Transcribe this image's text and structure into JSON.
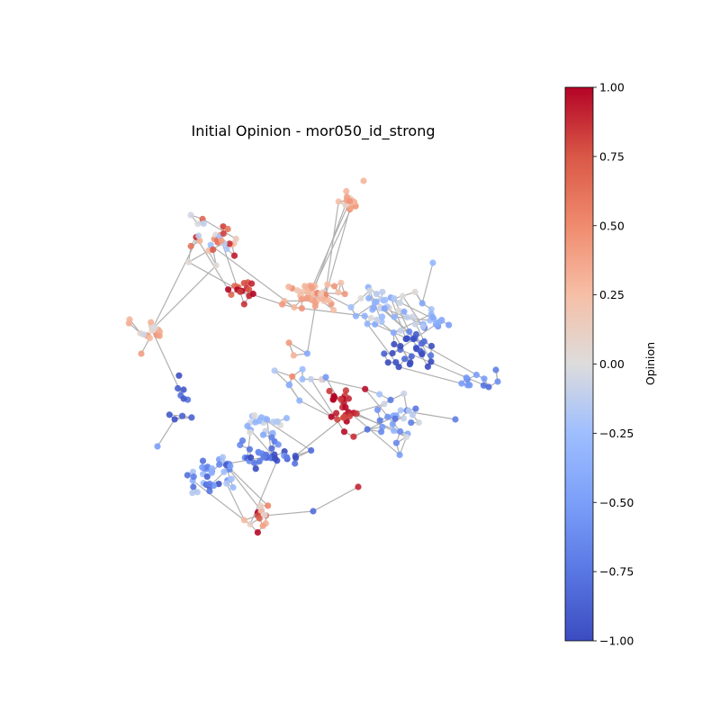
{
  "chart_data": {
    "type": "network",
    "title": "Initial Opinion - mor050_id_strong",
    "colorbar": {
      "label": "Opinion",
      "colormap": "coolwarm",
      "range": [
        -1.0,
        1.0
      ],
      "ticks": [
        "1.00",
        "0.75",
        "0.50",
        "0.25",
        "0.00",
        "−0.25",
        "−0.50",
        "−0.75",
        "−1.00"
      ],
      "tick_values": [
        1.0,
        0.75,
        0.5,
        0.25,
        0.0,
        -0.25,
        -0.5,
        -0.75,
        -1.0
      ]
    },
    "edge_color": "#b0b0b0",
    "node_count": 480
  }
}
